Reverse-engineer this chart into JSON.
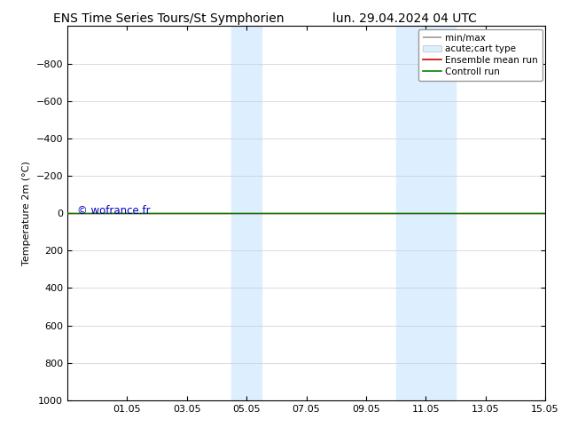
{
  "title_left": "ENS Time Series Tours/St Symphorien",
  "title_right": "lun. 29.04.2024 04 UTC",
  "ylabel": "Temperature 2m (°C)",
  "ylim_top": -1000,
  "ylim_bottom": 1000,
  "yticks": [
    -800,
    -600,
    -400,
    -200,
    0,
    200,
    400,
    600,
    800,
    1000
  ],
  "xtick_labels": [
    "01.05",
    "03.05",
    "05.05",
    "07.05",
    "09.05",
    "11.05",
    "13.05",
    "15.05"
  ],
  "xtick_positions": [
    2,
    4,
    6,
    8,
    10,
    12,
    14,
    16
  ],
  "x_min": 0,
  "x_max": 16,
  "shaded_bands": [
    {
      "x_start": 5.5,
      "x_end": 6.5,
      "color": "#ddeeff"
    },
    {
      "x_start": 11.0,
      "x_end": 13.0,
      "color": "#ddeeff"
    }
  ],
  "hline_y": 0,
  "hline_color_green": "#008000",
  "hline_color_red": "#cc0000",
  "hline_linewidth": 1.0,
  "watermark": "© wofrance.fr",
  "watermark_color": "#0000bb",
  "legend_labels": [
    "min/max",
    "acute;cart type",
    "Ensemble mean run",
    "Controll run"
  ],
  "legend_minmax_color": "#999999",
  "legend_acute_color": "#ddeeff",
  "legend_ensemble_color": "#cc0000",
  "legend_control_color": "#008000",
  "background_color": "#ffffff",
  "grid_color": "#cccccc",
  "title_fontsize": 10,
  "axis_label_fontsize": 8,
  "tick_fontsize": 8,
  "legend_fontsize": 7.5,
  "watermark_fontsize": 8.5
}
